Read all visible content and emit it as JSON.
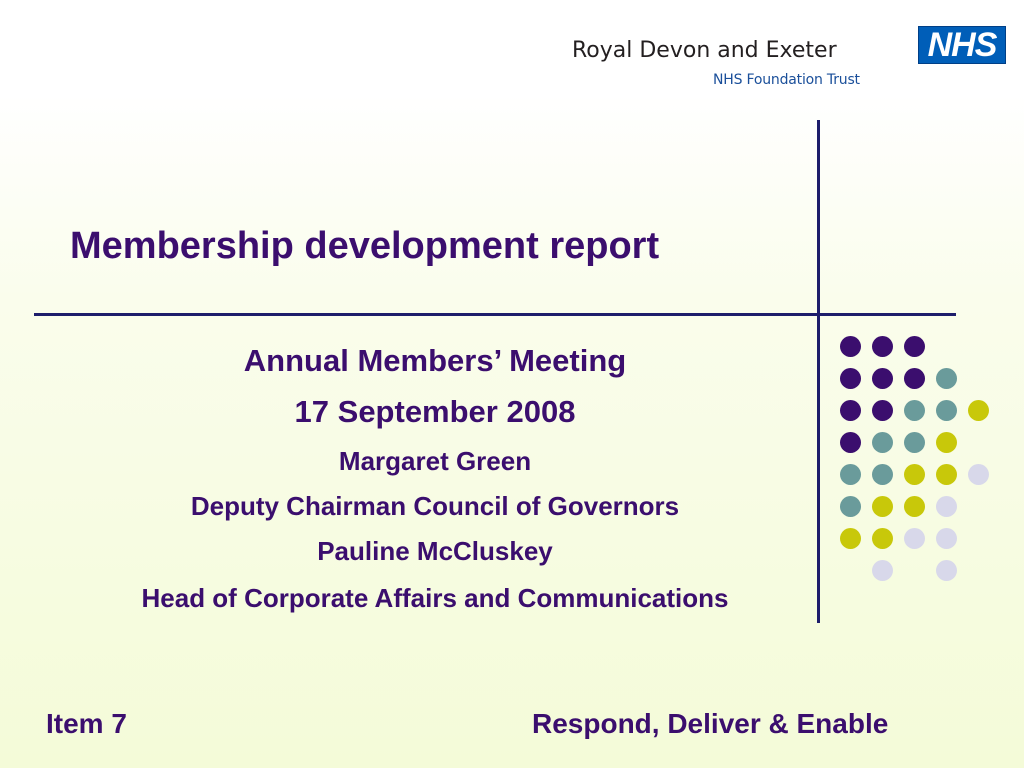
{
  "header": {
    "org_name": "Royal Devon and Exeter",
    "org_subtitle": "NHS Foundation Trust",
    "nhs_logo_text": "NHS"
  },
  "slide": {
    "title": "Membership development report",
    "lines": [
      "Annual Members’ Meeting",
      "17 September 2008",
      "Margaret Green",
      "Deputy Chairman Council of Governors",
      "Pauline McCluskey",
      "Head of Corporate Affairs and Communications"
    ]
  },
  "footer": {
    "left": "Item 7",
    "right": "Respond, Deliver & Enable"
  },
  "colors": {
    "title": "#3b0e6e",
    "rule": "#1d1d6b",
    "dot_purple": "#3b0e6e",
    "dot_teal": "#6a9b9b",
    "dot_lime": "#c8c80a",
    "dot_lavender": "#d8d8ea"
  },
  "decor": {
    "dot_grid": [
      [
        "purple",
        "purple",
        "purple",
        "",
        ""
      ],
      [
        "purple",
        "purple",
        "purple",
        "teal",
        ""
      ],
      [
        "purple",
        "purple",
        "teal",
        "teal",
        "lime"
      ],
      [
        "purple",
        "teal",
        "teal",
        "lime",
        ""
      ],
      [
        "teal",
        "teal",
        "lime",
        "lime",
        "lavender"
      ],
      [
        "teal",
        "lime",
        "lime",
        "lavender",
        ""
      ],
      [
        "lime",
        "lime",
        "lavender",
        "lavender",
        ""
      ],
      [
        "",
        "lavender",
        "",
        "lavender",
        ""
      ]
    ]
  }
}
